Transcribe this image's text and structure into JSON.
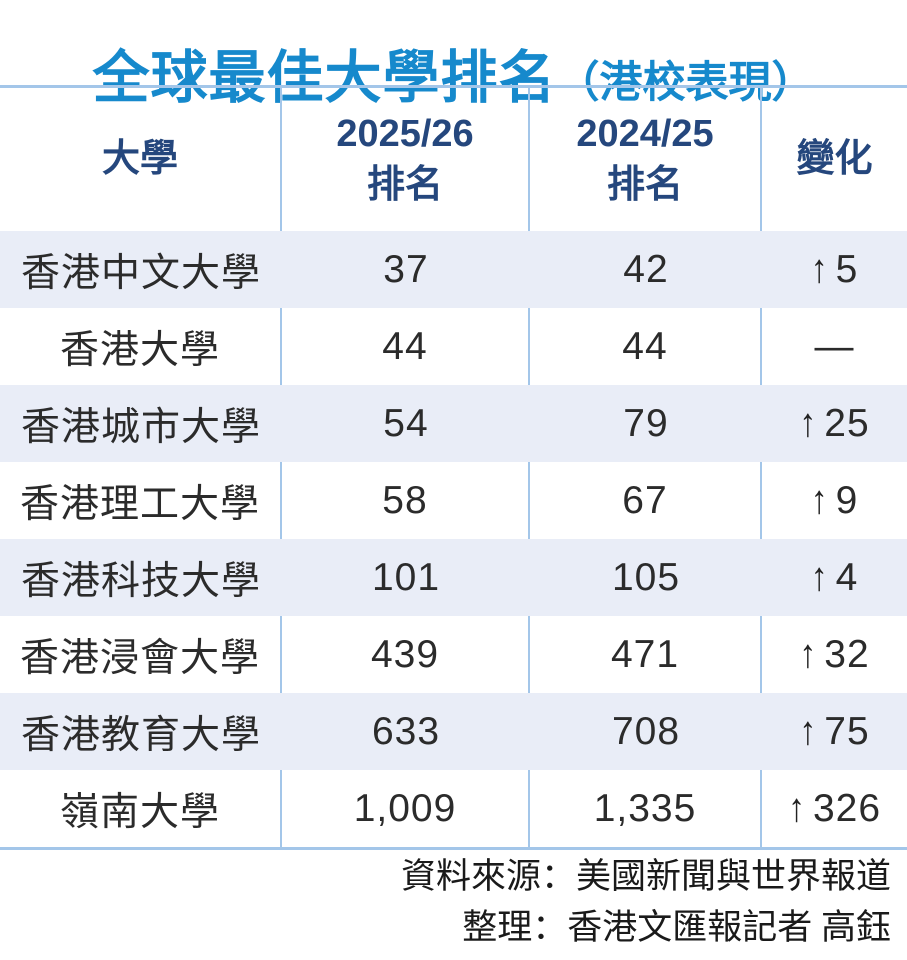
{
  "title": {
    "main": "全球最佳大學排名",
    "paren": "（港校表現）"
  },
  "colors": {
    "title_blue": "#1689cc",
    "header_navy": "#25477d",
    "row_shade": "#e9edf7",
    "border_blue": "#a3c6e9",
    "body_text": "#2b2b2b"
  },
  "table": {
    "headers": [
      {
        "id": "university",
        "lines": [
          "大學"
        ]
      },
      {
        "id": "rank-2025-26",
        "lines": [
          "2025/26",
          "排名"
        ]
      },
      {
        "id": "rank-2024-25",
        "lines": [
          "2024/25",
          "排名"
        ]
      },
      {
        "id": "change",
        "lines": [
          "變化"
        ]
      }
    ],
    "rows": [
      {
        "university": "香港中文大學",
        "rank_2025_26": "37",
        "rank_2024_25": "42",
        "change_arrow": "↑",
        "change_value": "5",
        "shaded": true
      },
      {
        "university": "香港大學",
        "rank_2025_26": "44",
        "rank_2024_25": "44",
        "change_arrow": "",
        "change_value": "—",
        "shaded": false
      },
      {
        "university": "香港城市大學",
        "rank_2025_26": "54",
        "rank_2024_25": "79",
        "change_arrow": "↑",
        "change_value": "25",
        "shaded": true
      },
      {
        "university": "香港理工大學",
        "rank_2025_26": "58",
        "rank_2024_25": "67",
        "change_arrow": "↑",
        "change_value": "9",
        "shaded": false
      },
      {
        "university": "香港科技大學",
        "rank_2025_26": "101",
        "rank_2024_25": "105",
        "change_arrow": "↑",
        "change_value": "4",
        "shaded": true
      },
      {
        "university": "香港浸會大學",
        "rank_2025_26": "439",
        "rank_2024_25": "471",
        "change_arrow": "↑",
        "change_value": "32",
        "shaded": false
      },
      {
        "university": "香港教育大學",
        "rank_2025_26": "633",
        "rank_2024_25": "708",
        "change_arrow": "↑",
        "change_value": "75",
        "shaded": true
      },
      {
        "university": "嶺南大學",
        "rank_2025_26": "1,009",
        "rank_2024_25": "1,335",
        "change_arrow": "↑",
        "change_value": "326",
        "shaded": false
      }
    ]
  },
  "footer": {
    "source": "資料來源：美國新聞與世界報道",
    "credit": "整理：香港文匯報記者 高鈺"
  },
  "chart_data": {
    "type": "table",
    "title": "全球最佳大學排名（港校表現）",
    "columns": [
      "大學",
      "2025/26排名",
      "2024/25排名",
      "變化"
    ],
    "rows": [
      [
        "香港中文大學",
        "37",
        "42",
        "↑5"
      ],
      [
        "香港大學",
        "44",
        "44",
        "—"
      ],
      [
        "香港城市大學",
        "54",
        "79",
        "↑25"
      ],
      [
        "香港理工大學",
        "58",
        "67",
        "↑9"
      ],
      [
        "香港科技大學",
        "101",
        "105",
        "↑4"
      ],
      [
        "香港浸會大學",
        "439",
        "471",
        "↑32"
      ],
      [
        "香港教育大學",
        "633",
        "708",
        "↑75"
      ],
      [
        "嶺南大學",
        "1,009",
        "1,335",
        "↑326"
      ]
    ],
    "source": "美國新聞與世界報道",
    "credit": "香港文匯報記者 高鈺"
  }
}
